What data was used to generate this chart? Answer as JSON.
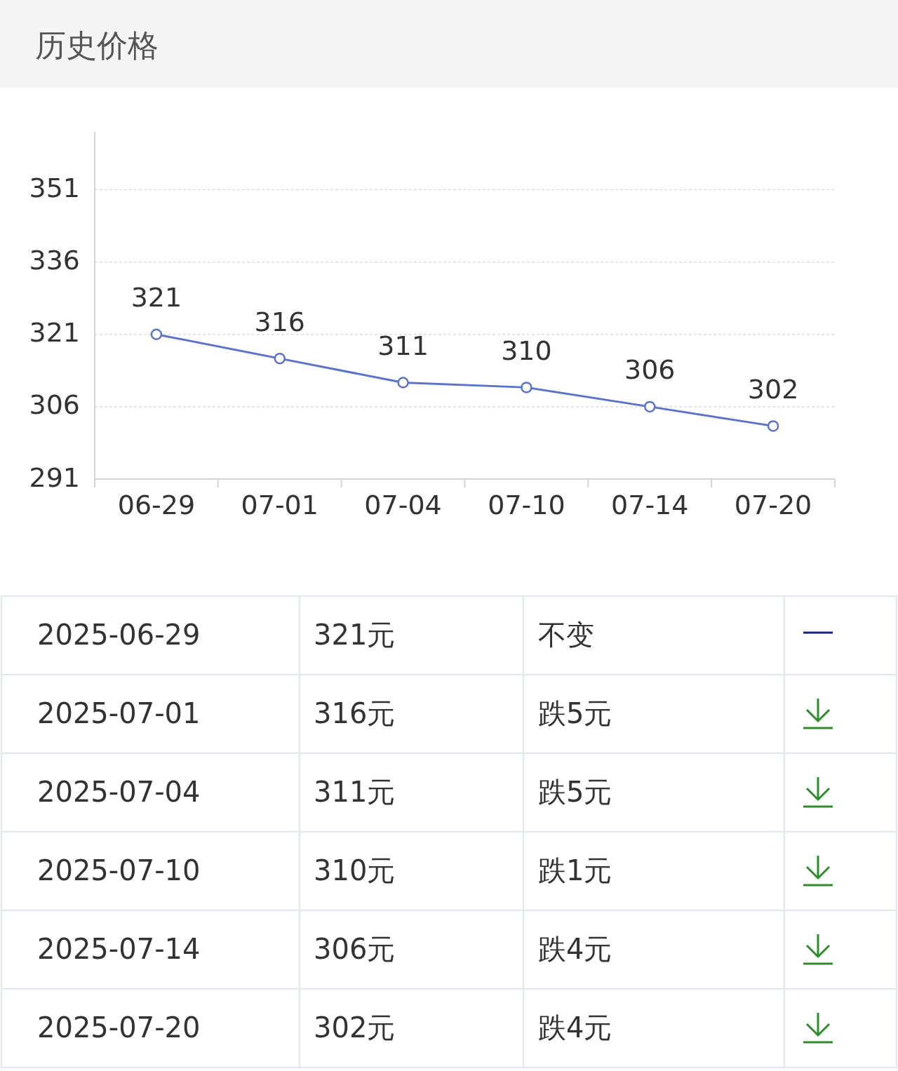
{
  "chart_data": [
    {
      "type": "line",
      "title": "历史价格",
      "categories": [
        "06-29",
        "07-01",
        "07-04",
        "07-10",
        "07-14",
        "07-20"
      ],
      "values": [
        321,
        316,
        311,
        310,
        306,
        302
      ],
      "color": "#5b73c9",
      "ylim": [
        291,
        363
      ],
      "yticks": [
        291,
        306,
        321,
        336,
        351
      ],
      "grid": "y",
      "marker": "circle",
      "line_style": "solid",
      "data_labels": true
    },
    {
      "type": "other",
      "categories": [
        "2025-06-29",
        "2025-07-01",
        "2025-07-04",
        "2025-07-10",
        "2025-07-14",
        "2025-07-20"
      ],
      "values": [
        321,
        316,
        311,
        310,
        306,
        302
      ],
      "value_labels": [
        "321元",
        "316元",
        "311元",
        "310元",
        "306元",
        "302元"
      ],
      "annotations": [
        "不变",
        "跌5元",
        "跌5元",
        "跌1元",
        "跌4元",
        "跌4元"
      ]
    }
  ]
}
